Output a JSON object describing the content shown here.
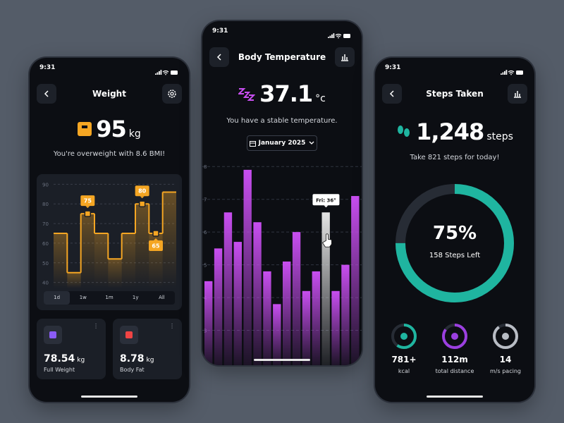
{
  "weight": {
    "time": "9:31",
    "title": "Weight",
    "value": "95",
    "unit": "kg",
    "message": "You're overweight with 8.6 BMI!",
    "chart": {
      "type": "step",
      "color": "#f5a623",
      "values": [
        65,
        45,
        75,
        65,
        52,
        65,
        80,
        65,
        86
      ],
      "value_labels": [
        null,
        null,
        "75",
        null,
        null,
        null,
        "80",
        "65",
        null
      ],
      "ylim": [
        37,
        93
      ],
      "yticks": [
        40,
        50,
        60,
        70,
        80,
        90
      ],
      "grid": true
    },
    "ranges": [
      "1d",
      "1w",
      "1m",
      "1y",
      "All"
    ],
    "selected_range": "1d",
    "cards": [
      {
        "value": "78.54",
        "unit": "kg",
        "label": "Full Weight",
        "color": "#8b5cf6"
      },
      {
        "value": "8.78",
        "unit": "kg",
        "label": "Body Fat",
        "color": "#ef4444"
      }
    ]
  },
  "temperature": {
    "time": "9:31",
    "title": "Body Temperature",
    "value": "37.1",
    "unit": "°c",
    "message": "You have a stable temperature.",
    "month": "January 2025",
    "chart": {
      "type": "bar",
      "values": [
        4.5,
        5.5,
        6.6,
        5.7,
        7.9,
        6.3,
        4.8,
        3.8,
        5.1,
        6.0,
        4.2,
        4.8,
        6.6,
        4.2,
        5.0,
        7.1
      ],
      "ylim": [
        2,
        8.5
      ],
      "yticks": [
        3,
        4,
        5,
        6,
        7,
        8
      ],
      "grid": true,
      "color": "#c84ef0",
      "highlight": 12,
      "highlight_color": "#e4e4e4",
      "tooltip": "Fri: 36°"
    }
  },
  "steps": {
    "time": "9:31",
    "title": "Steps Taken",
    "value": "1,248",
    "unit": "steps",
    "message": "Take 821 steps for today!",
    "progress": 75,
    "progress_label": "75%",
    "remaining": "158 Steps Left",
    "color": "#1fb5a0",
    "stats": [
      {
        "value": "781+",
        "label": "kcal",
        "progress": 60,
        "color": "#1fb5a0"
      },
      {
        "value": "112m",
        "label": "total distance",
        "progress": 85,
        "color": "#9b3fe0"
      },
      {
        "value": "14",
        "label": "m/s pacing",
        "progress": 90,
        "color": "#b8bcc4"
      }
    ]
  }
}
